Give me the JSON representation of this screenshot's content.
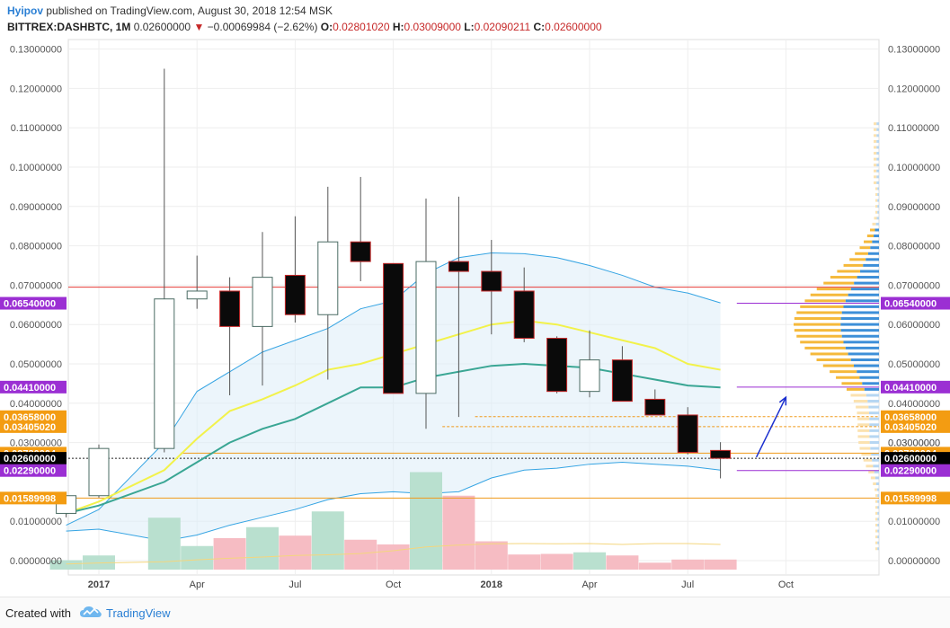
{
  "header": {
    "author": "Hyipov",
    "published_text": "published on TradingView.com, August 30, 2018 12:54 MSK",
    "symbol": "BITTREX:DASHBTC, 1M",
    "last": "0.02600000",
    "change_arrow": "▼",
    "change": "−0.00069984 (−2.62%)",
    "o_label": "O:",
    "o_value": "0.02801020",
    "h_label": "H:",
    "h_value": "0.03009000",
    "l_label": "L:",
    "l_value": "0.02090211",
    "c_label": "C:",
    "c_value": "0.02600000"
  },
  "footer": {
    "created_with": "Created with",
    "brand": "TradingView",
    "logo_icon": "tradingview-cloud-icon"
  },
  "colors": {
    "up_fill": "#ffffff",
    "down_fill": "#0a0a0a",
    "candle_border": "#4a6b63",
    "down_border": "#c62828",
    "ema_yellow": "#f2f24a",
    "ema_teal": "#3aa694",
    "band_blue": "#35a4e3",
    "vol_up": "#b9e0cf",
    "vol_down": "#f6bcc3",
    "vol_ma": "#f4d67d",
    "line_red": "#e53935",
    "line_purple": "#9b2fd3",
    "line_orange": "#f09a1a",
    "badge_purple": "#9b2fd3",
    "badge_orange": "#f39c12",
    "badge_black": "#000000",
    "vp_orange": "#f5b93b",
    "vp_blue": "#3d8fd8",
    "vp_orange_light": "#fbe2b0",
    "vp_blue_light": "#b6d6f2"
  },
  "chart_data": {
    "type": "candlestick",
    "title": "",
    "xlabel": "",
    "ylabel": "",
    "ylim": [
      -0.002,
      0.131
    ],
    "grid": true,
    "time_labels": [
      "2017",
      "Apr",
      "Jul",
      "Oct",
      "2018",
      "Apr",
      "Jul",
      "Oct"
    ],
    "time_label_months": [
      "2017-01",
      "2017-04",
      "2017-07",
      "2017-10",
      "2018-01",
      "2018-04",
      "2018-07",
      "2018-10"
    ],
    "y_ticks": [
      "0.13000000",
      "0.12000000",
      "0.11000000",
      "0.10000000",
      "0.09000000",
      "0.08000000",
      "0.07000000",
      "0.06000000",
      "0.05000000",
      "0.04000000",
      "0.03000000",
      "0.01000000",
      "0.00000000"
    ],
    "y_tick_values": [
      0.13,
      0.12,
      0.11,
      0.1,
      0.09,
      0.08,
      0.07,
      0.06,
      0.05,
      0.04,
      0.03,
      0.01,
      0.0
    ],
    "candles": [
      {
        "month": "2016-12",
        "open": 0.012,
        "high": 0.0175,
        "low": 0.011,
        "close": 0.0165
      },
      {
        "month": "2017-01",
        "open": 0.0165,
        "high": 0.0295,
        "low": 0.016,
        "close": 0.0285
      },
      {
        "month": "2017-03",
        "open": 0.0285,
        "high": 0.125,
        "low": 0.0275,
        "close": 0.0665
      },
      {
        "month": "2017-04",
        "open": 0.0665,
        "high": 0.0775,
        "low": 0.064,
        "close": 0.0685
      },
      {
        "month": "2017-05",
        "open": 0.0685,
        "high": 0.072,
        "low": 0.042,
        "close": 0.0595
      },
      {
        "month": "2017-06",
        "open": 0.0595,
        "high": 0.0835,
        "low": 0.0445,
        "close": 0.072
      },
      {
        "month": "2017-07",
        "open": 0.0725,
        "high": 0.0875,
        "low": 0.0605,
        "close": 0.0625
      },
      {
        "month": "2017-08",
        "open": 0.0625,
        "high": 0.095,
        "low": 0.046,
        "close": 0.081
      },
      {
        "month": "2017-09",
        "open": 0.081,
        "high": 0.0975,
        "low": 0.071,
        "close": 0.076
      },
      {
        "month": "2017-10",
        "open": 0.0755,
        "high": 0.075,
        "low": 0.0425,
        "close": 0.0425
      },
      {
        "month": "2017-11",
        "open": 0.0425,
        "high": 0.092,
        "low": 0.0335,
        "close": 0.076
      },
      {
        "month": "2017-12",
        "open": 0.076,
        "high": 0.0925,
        "low": 0.0365,
        "close": 0.0735
      },
      {
        "month": "2018-01",
        "open": 0.0735,
        "high": 0.0815,
        "low": 0.0575,
        "close": 0.0685
      },
      {
        "month": "2018-02",
        "open": 0.0685,
        "high": 0.0745,
        "low": 0.0555,
        "close": 0.0565
      },
      {
        "month": "2018-03",
        "open": 0.0565,
        "high": 0.057,
        "low": 0.0425,
        "close": 0.043
      },
      {
        "month": "2018-04",
        "open": 0.043,
        "high": 0.0585,
        "low": 0.0415,
        "close": 0.051
      },
      {
        "month": "2018-05",
        "open": 0.051,
        "high": 0.0545,
        "low": 0.0405,
        "close": 0.0405
      },
      {
        "month": "2018-06",
        "open": 0.041,
        "high": 0.0435,
        "low": 0.037,
        "close": 0.037
      },
      {
        "month": "2018-07",
        "open": 0.037,
        "high": 0.039,
        "low": 0.027,
        "close": 0.0275
      },
      {
        "month": "2018-08",
        "open": 0.028,
        "high": 0.0301,
        "low": 0.0209,
        "close": 0.026
      }
    ],
    "volume_up_flags": [
      true,
      true,
      true,
      true,
      false,
      true,
      false,
      true,
      false,
      false,
      true,
      false,
      false,
      false,
      false,
      true,
      false,
      false,
      false,
      false
    ],
    "volume_values": [
      0.003,
      0.0045,
      0.0165,
      0.0075,
      0.01,
      0.0135,
      0.0108,
      0.0185,
      0.0095,
      0.008,
      0.031,
      0.0235,
      0.009,
      0.0048,
      0.005,
      0.0055,
      0.0045,
      0.0022,
      0.0032,
      0.0032
    ],
    "volume_ma": [
      0.0018,
      0.0021,
      0.0025,
      0.0031,
      0.0036,
      0.004,
      0.0045,
      0.0047,
      0.0051,
      0.006,
      0.0072,
      0.0078,
      0.0082,
      0.0083,
      0.0082,
      0.0083,
      0.008,
      0.0083,
      0.0083,
      0.008
    ],
    "ema_yellow": [
      0.012,
      0.015,
      0.023,
      0.031,
      0.038,
      0.041,
      0.0445,
      0.0485,
      0.05,
      0.0525,
      0.055,
      0.0575,
      0.06,
      0.061,
      0.06,
      0.058,
      0.056,
      0.054,
      0.05,
      0.0485
    ],
    "ema_teal": [
      0.012,
      0.014,
      0.02,
      0.025,
      0.03,
      0.0335,
      0.036,
      0.04,
      0.044,
      0.044,
      0.0465,
      0.048,
      0.0495,
      0.05,
      0.0495,
      0.049,
      0.0475,
      0.046,
      0.0445,
      0.044
    ],
    "band_upper": [
      0.009,
      0.013,
      0.03,
      0.043,
      0.048,
      0.053,
      0.056,
      0.059,
      0.064,
      0.066,
      0.073,
      0.077,
      0.0782,
      0.078,
      0.077,
      0.075,
      0.0725,
      0.0695,
      0.068,
      0.0655
    ],
    "band_lower": [
      0.0075,
      0.008,
      0.005,
      0.0065,
      0.009,
      0.011,
      0.013,
      0.0155,
      0.017,
      0.0175,
      0.017,
      0.0175,
      0.021,
      0.023,
      0.0235,
      0.0245,
      0.025,
      0.0245,
      0.024,
      0.023
    ],
    "horizontal_levels": [
      {
        "value": 0.0695,
        "color": "red",
        "label": ""
      },
      {
        "value": 0.0654,
        "color": "purple",
        "label": "0.06540000"
      },
      {
        "value": 0.0441,
        "color": "purple",
        "label": "0.04410000"
      },
      {
        "value": 0.03658,
        "color": "orange-dashed",
        "label": "0.03658000"
      },
      {
        "value": 0.0340502,
        "color": "orange-dashed",
        "label": "0.03405020"
      },
      {
        "value": 0.0273004,
        "color": "orange",
        "label": "0.02730004"
      },
      {
        "value": 0.026,
        "color": "black-dotted",
        "label": "0.02600000"
      },
      {
        "value": 0.0229,
        "color": "purple",
        "label": "0.02290000"
      },
      {
        "value": 0.01589998,
        "color": "orange",
        "label": "0.01589998"
      }
    ],
    "extra_axis_label": "0.03000000",
    "arrow": {
      "from_month": "2018-08",
      "from_value": 0.0263,
      "to_month": "2018-10",
      "to_value": 0.0415
    }
  }
}
